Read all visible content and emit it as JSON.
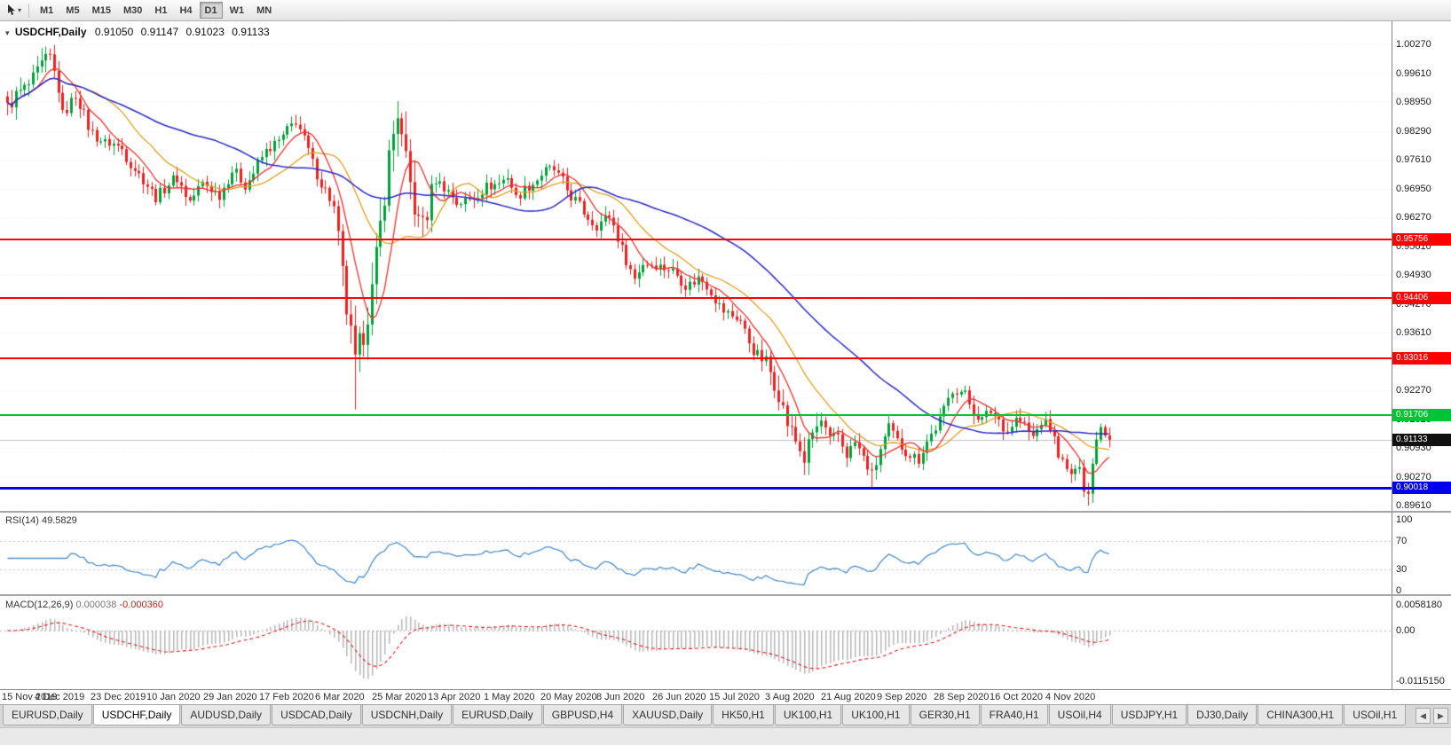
{
  "toolbar": {
    "timeframes": [
      "M1",
      "M5",
      "M15",
      "M30",
      "H1",
      "H4",
      "D1",
      "W1",
      "MN"
    ],
    "active_timeframe": "D1"
  },
  "icons": {
    "cursor_tool": "cursor-arrow",
    "toolbar_caret": "▾",
    "chart_collapse": "▾",
    "tabs_scroll_left": "◀",
    "tabs_scroll_right": "▶"
  },
  "chart": {
    "symbol": "USDCHF,Daily",
    "open": "0.91050",
    "high": "0.91147",
    "low": "0.91023",
    "close": "0.91133",
    "y_axis_labels": [
      "1.00270",
      "0.99610",
      "0.98950",
      "0.98290",
      "0.97610",
      "0.96950",
      "0.96270",
      "0.95610",
      "0.94930",
      "0.94270",
      "0.93610",
      "0.92930",
      "0.92270",
      "0.91610",
      "0.90930",
      "0.90270",
      "0.89610"
    ],
    "x_axis_labels": [
      "15 Nov 2019",
      "4 Dec 2019",
      "23 Dec 2019",
      "10 Jan 2020",
      "29 Jan 2020",
      "17 Feb 2020",
      "6 Mar 2020",
      "25 Mar 2020",
      "13 Apr 2020",
      "1 May 2020",
      "20 May 2020",
      "8 Jun 2020",
      "26 Jun 2020",
      "15 Jul 2020",
      "3 Aug 2020",
      "21 Aug 2020",
      "9 Sep 2020",
      "28 Sep 2020",
      "16 Oct 2020",
      "4 Nov 2020"
    ],
    "hlines": [
      {
        "label": "0.95756",
        "value": 0.95756,
        "color": "#ff0000",
        "width": 2
      },
      {
        "label": "0.94406",
        "value": 0.94406,
        "color": "#ff0000",
        "width": 2
      },
      {
        "label": "0.93016",
        "value": 0.93016,
        "color": "#ff0000",
        "width": 2
      },
      {
        "label": "0.91706",
        "value": 0.91706,
        "color": "#00c435",
        "width": 2
      },
      {
        "label": "0.90018",
        "value": 0.90018,
        "color": "#0000ee",
        "width": 3
      }
    ],
    "current_price": {
      "label": "0.91133",
      "value": 0.91133
    }
  },
  "indicators": {
    "rsi": {
      "name": "RSI(14)",
      "value": "49.5829",
      "axis_labels": [
        "100",
        "70",
        "30",
        "0"
      ],
      "upper_level": 70,
      "lower_level": 30
    },
    "macd": {
      "name": "MACD(12,26,9)",
      "main_value": "0.000038",
      "signal_value": "-0.000360",
      "axis_labels": [
        "0.0058180",
        "0.00",
        "-0.0115150"
      ],
      "axis_top": 0.005818,
      "axis_bottom": -0.011515
    }
  },
  "tabs": {
    "items": [
      "EURUSD,Daily",
      "USDCHF,Daily",
      "AUDUSD,Daily",
      "USDCAD,Daily",
      "USDCNH,Daily",
      "EURUSD,Daily",
      "GBPUSD,H4",
      "XAUUSD,Daily",
      "HK50,H1",
      "UK100,H1",
      "UK100,H1",
      "GER30,H1",
      "FRA40,H1",
      "USOil,H4",
      "USDJPY,H1",
      "DJ30,Daily",
      "CHINA300,H1",
      "USOil,H1"
    ],
    "active_index": 1
  },
  "colors": {
    "candle_up": "#00a03a",
    "candle_down": "#ee2020",
    "ma_fast": "#f03030",
    "ma_mid": "#e0a01e",
    "ma_slow": "#2929c8",
    "rsi_line": "#4e8fd0",
    "macd_hist": "#b6b6b6",
    "macd_signal": "#e02020",
    "grid": "#ededed",
    "level_dash": "#c8c8c8",
    "current_tag_bg": "#111111",
    "bid_line": "#c2c2c2"
  },
  "chart_data": {
    "type": "candlestick",
    "symbol": "USDCHF",
    "timeframe": "D1",
    "bars": 261,
    "price_range": [
      0.8961,
      1.0023
    ],
    "price_path": [
      [
        0,
        0.988
      ],
      [
        4,
        0.9925
      ],
      [
        8,
        0.9975
      ],
      [
        10,
        0.999
      ],
      [
        12,
        0.993
      ],
      [
        13,
        0.987
      ],
      [
        16,
        0.9905
      ],
      [
        19,
        0.984
      ],
      [
        23,
        0.9795
      ],
      [
        27,
        0.979
      ],
      [
        31,
        0.972
      ],
      [
        35,
        0.968
      ],
      [
        40,
        0.9715
      ],
      [
        43,
        0.967
      ],
      [
        46,
        0.97
      ],
      [
        50,
        0.9685
      ],
      [
        53,
        0.973
      ],
      [
        56,
        0.9705
      ],
      [
        59,
        0.975
      ],
      [
        62,
        0.9785
      ],
      [
        66,
        0.983
      ],
      [
        68,
        0.9845
      ],
      [
        71,
        0.9785
      ],
      [
        74,
        0.9705
      ],
      [
        77,
        0.9645
      ],
      [
        80,
        0.942
      ],
      [
        82,
        0.928
      ],
      [
        84,
        0.936
      ],
      [
        86,
        0.946
      ],
      [
        88,
        0.961
      ],
      [
        90,
        0.976
      ],
      [
        92,
        0.987
      ],
      [
        93,
        0.9805
      ],
      [
        95,
        0.9705
      ],
      [
        97,
        0.9605
      ],
      [
        99,
        0.9635
      ],
      [
        101,
        0.972
      ],
      [
        103,
        0.97
      ],
      [
        106,
        0.9655
      ],
      [
        109,
        0.9675
      ],
      [
        112,
        0.9685
      ],
      [
        115,
        0.9705
      ],
      [
        118,
        0.9725
      ],
      [
        120,
        0.9665
      ],
      [
        123,
        0.9705
      ],
      [
        126,
        0.9725
      ],
      [
        129,
        0.9735
      ],
      [
        131,
        0.9715
      ],
      [
        133,
        0.9675
      ],
      [
        136,
        0.9635
      ],
      [
        139,
        0.9615
      ],
      [
        142,
        0.9625
      ],
      [
        146,
        0.9535
      ],
      [
        148,
        0.9485
      ],
      [
        150,
        0.9515
      ],
      [
        153,
        0.9525
      ],
      [
        156,
        0.9505
      ],
      [
        160,
        0.9475
      ],
      [
        163,
        0.9485
      ],
      [
        166,
        0.9455
      ],
      [
        169,
        0.9415
      ],
      [
        171,
        0.9395
      ],
      [
        173,
        0.9385
      ],
      [
        176,
        0.9325
      ],
      [
        179,
        0.9285
      ],
      [
        182,
        0.9225
      ],
      [
        184,
        0.9155
      ],
      [
        186,
        0.9105
      ],
      [
        188,
        0.9065
      ],
      [
        190,
        0.9135
      ],
      [
        192,
        0.9155
      ],
      [
        194,
        0.9105
      ],
      [
        196,
        0.9125
      ],
      [
        198,
        0.9085
      ],
      [
        200,
        0.9105
      ],
      [
        202,
        0.9065
      ],
      [
        204,
        0.9035
      ],
      [
        206,
        0.9095
      ],
      [
        208,
        0.9135
      ],
      [
        210,
        0.9105
      ],
      [
        213,
        0.9085
      ],
      [
        215,
        0.9065
      ],
      [
        217,
        0.9105
      ],
      [
        219,
        0.9145
      ],
      [
        221,
        0.9185
      ],
      [
        223,
        0.9225
      ],
      [
        226,
        0.922
      ],
      [
        228,
        0.9185
      ],
      [
        230,
        0.9155
      ],
      [
        232,
        0.9175
      ],
      [
        234,
        0.9165
      ],
      [
        236,
        0.9135
      ],
      [
        238,
        0.9155
      ],
      [
        240,
        0.9145
      ],
      [
        242,
        0.9125
      ],
      [
        244,
        0.9155
      ],
      [
        246,
        0.9135
      ],
      [
        248,
        0.9085
      ],
      [
        250,
        0.9045
      ],
      [
        252,
        0.903
      ],
      [
        253,
        0.9055
      ],
      [
        254,
        0.9
      ],
      [
        255,
        0.899
      ],
      [
        256,
        0.906
      ],
      [
        257,
        0.913
      ],
      [
        258,
        0.9148
      ],
      [
        260,
        0.9113
      ]
    ],
    "forced_extremes": [
      {
        "bar": 9,
        "high": 1.0022
      },
      {
        "bar": 82,
        "low": 0.9183
      },
      {
        "bar": 92,
        "high": 0.9896
      },
      {
        "bar": 204,
        "low": 0.9001
      },
      {
        "bar": 255,
        "low": 0.8961
      }
    ],
    "volatility_zones": [
      {
        "from": 0,
        "to": 12,
        "mult": 1.4
      },
      {
        "from": 78,
        "to": 100,
        "mult": 2.6
      },
      {
        "from": 178,
        "to": 192,
        "mult": 1.6
      }
    ],
    "moving_average_periods": {
      "fast": 8,
      "mid": 20,
      "slow": 50
    },
    "rsi_period": 14,
    "macd_params": [
      12,
      26,
      9
    ],
    "last_close": 0.91133
  }
}
